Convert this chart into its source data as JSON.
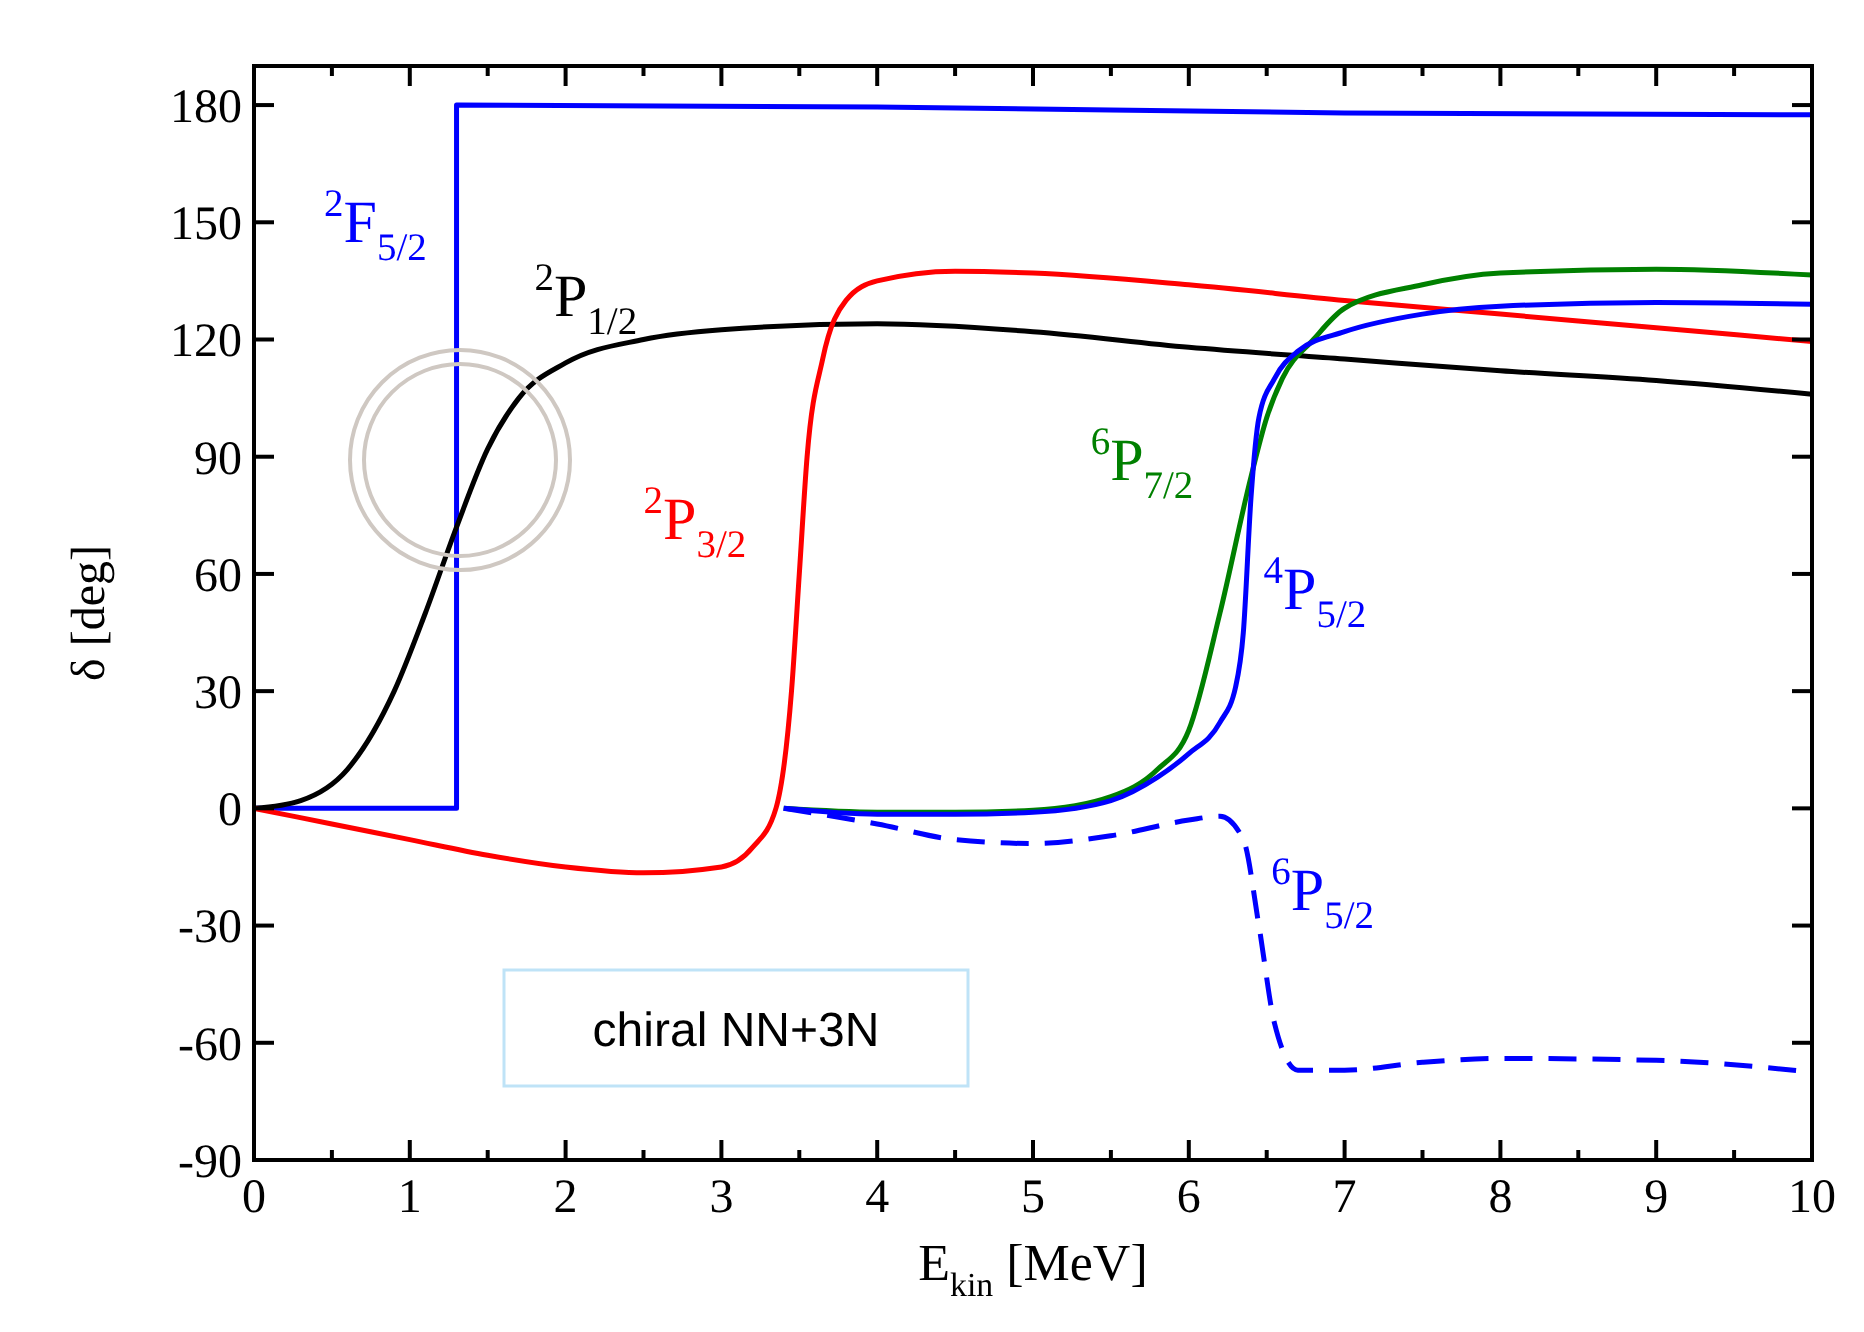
{
  "chart_data": {
    "type": "line",
    "xlabel": "E$_{kin}$ [MeV]",
    "ylabel": "δ [deg]",
    "xlim": [
      0,
      10
    ],
    "ylim": [
      -90,
      190
    ],
    "xticks": [
      0,
      {
        "value": 0.5,
        "label": null
      },
      1,
      {
        "value": 1.5,
        "label": null
      },
      2,
      {
        "value": 2.5,
        "label": null
      },
      3,
      {
        "value": 3.5,
        "label": null
      },
      4,
      {
        "value": 4.5,
        "label": null
      },
      5,
      {
        "value": 5.5,
        "label": null
      },
      6,
      {
        "value": 6.5,
        "label": null
      },
      7,
      {
        "value": 7.5,
        "label": null
      },
      8,
      {
        "value": 8.5,
        "label": null
      },
      9,
      {
        "value": 9.5,
        "label": null
      },
      10
    ],
    "yticks": [
      -90,
      -60,
      -30,
      0,
      30,
      60,
      90,
      120,
      150,
      180
    ],
    "grid": false,
    "marker": "none",
    "annotations": [
      "chiral NN+3N"
    ],
    "series": [
      {
        "name": "$^{2}$F$_{5/2}$",
        "color": "#0000ff",
        "line_style": "solid",
        "x": [
          0,
          1.3,
          1.3,
          4,
          7,
          10
        ],
        "values": [
          0,
          0,
          180,
          179.5,
          178,
          177.5
        ]
      },
      {
        "name": "$^{2}$P$_{1/2}$",
        "color": "#000000",
        "line_style": "solid",
        "x": [
          0,
          0.3,
          0.6,
          0.9,
          1.1,
          1.3,
          1.5,
          1.7,
          2,
          2.5,
          3,
          4,
          5,
          6,
          7,
          8,
          9,
          10
        ],
        "values": [
          0,
          2,
          10,
          30,
          50,
          72,
          92,
          105,
          114,
          120,
          122.5,
          124,
          122,
          118,
          115,
          112,
          109.5,
          106
        ]
      },
      {
        "name": "$^{2}$P$_{3/2}$",
        "color": "#ff0000",
        "line_style": "solid",
        "x": [
          0,
          0.5,
          1,
          1.5,
          2,
          2.5,
          3,
          3.2,
          3.35,
          3.45,
          3.5,
          3.55,
          3.65,
          3.8,
          4,
          4.5,
          5,
          6,
          7,
          8,
          9,
          10
        ],
        "values": [
          0,
          -4,
          -8,
          -12,
          -15,
          -16.5,
          -15,
          -10,
          0,
          30,
          60,
          90,
          115,
          130,
          135,
          137.5,
          137,
          134,
          130,
          126.5,
          123,
          119.5
        ]
      },
      {
        "name": "$^{6}$P$_{7/2}$",
        "color": "#008000",
        "line_style": "solid",
        "x": [
          3.4,
          4,
          4.5,
          5,
          5.5,
          5.8,
          6,
          6.2,
          6.4,
          6.5,
          6.6,
          6.8,
          7,
          7.5,
          8,
          9,
          10
        ],
        "values": [
          0,
          -1,
          -1,
          -0.5,
          3,
          10,
          20,
          50,
          85,
          100,
          110,
          120,
          128,
          134,
          137,
          138,
          136.5
        ]
      },
      {
        "name": "$^{4}$P$_{5/2}$",
        "color": "#0000ff",
        "line_style": "solid",
        "x": [
          3.4,
          4,
          4.5,
          5,
          5.5,
          5.8,
          6,
          6.2,
          6.3,
          6.35,
          6.4,
          6.45,
          6.55,
          6.7,
          7,
          7.5,
          8,
          9,
          10
        ],
        "values": [
          0,
          -1.5,
          -1.5,
          -1,
          2,
          8,
          14,
          22,
          31,
          45,
          80,
          100,
          110,
          117,
          122,
          126.5,
          128.5,
          129.5,
          129
        ]
      },
      {
        "name": "$^{6}$P$_{5/2}$",
        "color": "#0000ff",
        "line_style": "dashed",
        "x": [
          3.4,
          4,
          4.5,
          5,
          5.5,
          6,
          6.2,
          6.35,
          6.45,
          6.55,
          6.7,
          7,
          7.5,
          8,
          9,
          10
        ],
        "values": [
          0,
          -4,
          -8,
          -9,
          -7,
          -3,
          -2,
          -8,
          -30,
          -55,
          -67,
          -67,
          -65,
          -64,
          -64.5,
          -67.5
        ]
      }
    ]
  }
}
